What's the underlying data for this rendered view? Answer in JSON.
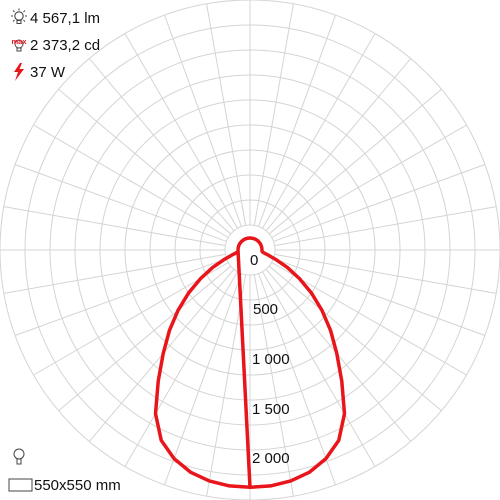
{
  "info": {
    "flux_icon": "bulb-icon",
    "flux": "4 567,1 lm",
    "peak_icon": "max-intensity-icon",
    "peak": "2 373,2 cd",
    "peak_icon_text": "max",
    "power_icon": "lightning-icon",
    "power": "37 W",
    "luminaire_icon": "lamp-icon",
    "size_icon": "rectangle-icon",
    "size": "550x550 mm"
  },
  "colors": {
    "curve": "#e8151b",
    "grid": "#d4d4d4",
    "text": "#111111"
  },
  "chart_data": {
    "type": "polar-line",
    "unit": "cd",
    "ring_labels": [
      "0",
      "500",
      "1 000",
      "1 500",
      "2 000"
    ],
    "rmax": 2500,
    "ring_step": 250,
    "radial_line_step_deg": 10,
    "grid": true,
    "series": [
      {
        "angles_deg": [
          0,
          5,
          10,
          15,
          20,
          25,
          30,
          35,
          40,
          45,
          50,
          55,
          60,
          65,
          70,
          75,
          80,
          85,
          90
        ],
        "values": [
          2373,
          2368,
          2345,
          2300,
          2220,
          2100,
          1890,
          1600,
          1350,
          1140,
          940,
          750,
          570,
          410,
          270,
          180,
          130,
          120,
          120
        ]
      }
    ]
  }
}
